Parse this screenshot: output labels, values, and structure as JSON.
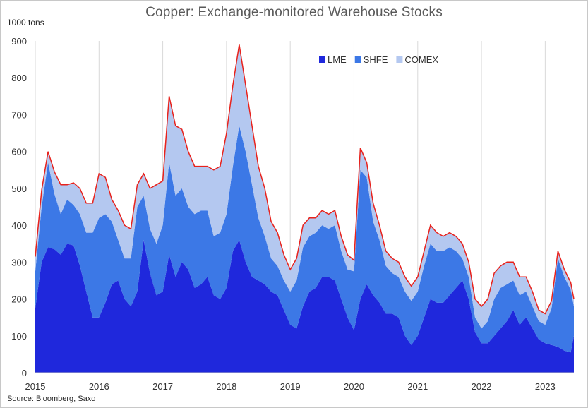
{
  "chart_data": {
    "type": "area",
    "stacked": true,
    "title": "Copper: Exchange-monitored Warehouse Stocks",
    "ylabel": "1000 tons",
    "ylim": [
      0,
      900
    ],
    "xlim": [
      2015.0,
      2023.45
    ],
    "grid": "vertical",
    "legend": "top-right",
    "y_ticks": [
      "0",
      "100",
      "200",
      "300",
      "400",
      "500",
      "600",
      "700",
      "800",
      "900"
    ],
    "x_ticks": [
      "2015",
      "2016",
      "2017",
      "2018",
      "2019",
      "2020",
      "2021",
      "2022",
      "2023"
    ],
    "x": [
      2015.0,
      2015.1,
      2015.2,
      2015.3,
      2015.4,
      2015.5,
      2015.6,
      2015.7,
      2015.8,
      2015.9,
      2016.0,
      2016.1,
      2016.2,
      2016.3,
      2016.4,
      2016.5,
      2016.6,
      2016.7,
      2016.8,
      2016.9,
      2017.0,
      2017.1,
      2017.2,
      2017.3,
      2017.4,
      2017.5,
      2017.6,
      2017.7,
      2017.8,
      2017.9,
      2018.0,
      2018.1,
      2018.2,
      2018.3,
      2018.4,
      2018.5,
      2018.6,
      2018.7,
      2018.8,
      2018.9,
      2019.0,
      2019.1,
      2019.2,
      2019.3,
      2019.4,
      2019.5,
      2019.6,
      2019.7,
      2019.8,
      2019.9,
      2020.0,
      2020.1,
      2020.2,
      2020.3,
      2020.4,
      2020.5,
      2020.6,
      2020.7,
      2020.8,
      2020.9,
      2021.0,
      2021.1,
      2021.2,
      2021.3,
      2021.4,
      2021.5,
      2021.6,
      2021.7,
      2021.8,
      2021.9,
      2022.0,
      2022.1,
      2022.2,
      2022.3,
      2022.4,
      2022.5,
      2022.6,
      2022.7,
      2022.8,
      2022.9,
      2023.0,
      2023.1,
      2023.2,
      2023.3,
      2023.4,
      2023.45
    ],
    "series": [
      {
        "name": "LME",
        "color": "#1f28dc",
        "values": [
          175,
          300,
          340,
          335,
          320,
          350,
          345,
          290,
          220,
          150,
          150,
          190,
          240,
          250,
          200,
          180,
          220,
          360,
          270,
          210,
          220,
          320,
          260,
          300,
          280,
          230,
          240,
          260,
          210,
          200,
          230,
          330,
          360,
          300,
          260,
          250,
          240,
          220,
          210,
          170,
          130,
          120,
          180,
          220,
          230,
          260,
          260,
          250,
          200,
          150,
          115,
          200,
          240,
          210,
          190,
          160,
          160,
          150,
          100,
          75,
          100,
          150,
          200,
          190,
          190,
          210,
          230,
          250,
          200,
          110,
          80,
          80,
          100,
          120,
          140,
          170,
          130,
          150,
          120,
          90,
          80,
          75,
          70,
          60,
          55,
          100
        ]
      },
      {
        "name": "SHFE",
        "color": "#3c78e6",
        "values": [
          100,
          150,
          230,
          150,
          110,
          120,
          110,
          140,
          160,
          230,
          270,
          240,
          170,
          110,
          110,
          130,
          230,
          120,
          120,
          140,
          180,
          250,
          220,
          200,
          170,
          200,
          200,
          180,
          160,
          180,
          200,
          230,
          310,
          300,
          250,
          170,
          130,
          90,
          80,
          80,
          90,
          130,
          160,
          150,
          150,
          140,
          130,
          150,
          130,
          130,
          160,
          350,
          290,
          200,
          170,
          130,
          110,
          110,
          120,
          120,
          120,
          140,
          150,
          140,
          140,
          130,
          100,
          60,
          60,
          40,
          40,
          60,
          100,
          110,
          100,
          80,
          80,
          70,
          60,
          50,
          50,
          100,
          240,
          200,
          170,
          80
        ]
      },
      {
        "name": "COMEX",
        "color": "#b4c8f0",
        "values": [
          40,
          45,
          30,
          60,
          80,
          40,
          60,
          70,
          80,
          80,
          120,
          100,
          60,
          80,
          90,
          80,
          60,
          60,
          110,
          160,
          120,
          180,
          190,
          160,
          150,
          130,
          120,
          120,
          180,
          180,
          220,
          220,
          220,
          180,
          160,
          140,
          130,
          100,
          90,
          70,
          60,
          60,
          60,
          50,
          40,
          40,
          40,
          40,
          40,
          40,
          30,
          60,
          40,
          50,
          40,
          40,
          40,
          40,
          40,
          40,
          40,
          40,
          50,
          50,
          40,
          40,
          40,
          40,
          40,
          50,
          60,
          60,
          70,
          60,
          60,
          50,
          50,
          40,
          40,
          30,
          30,
          20,
          20,
          20,
          20,
          20
        ]
      }
    ],
    "total_line_color": "#e8221c"
  },
  "source_text": "Source: Bloomberg, Saxo"
}
